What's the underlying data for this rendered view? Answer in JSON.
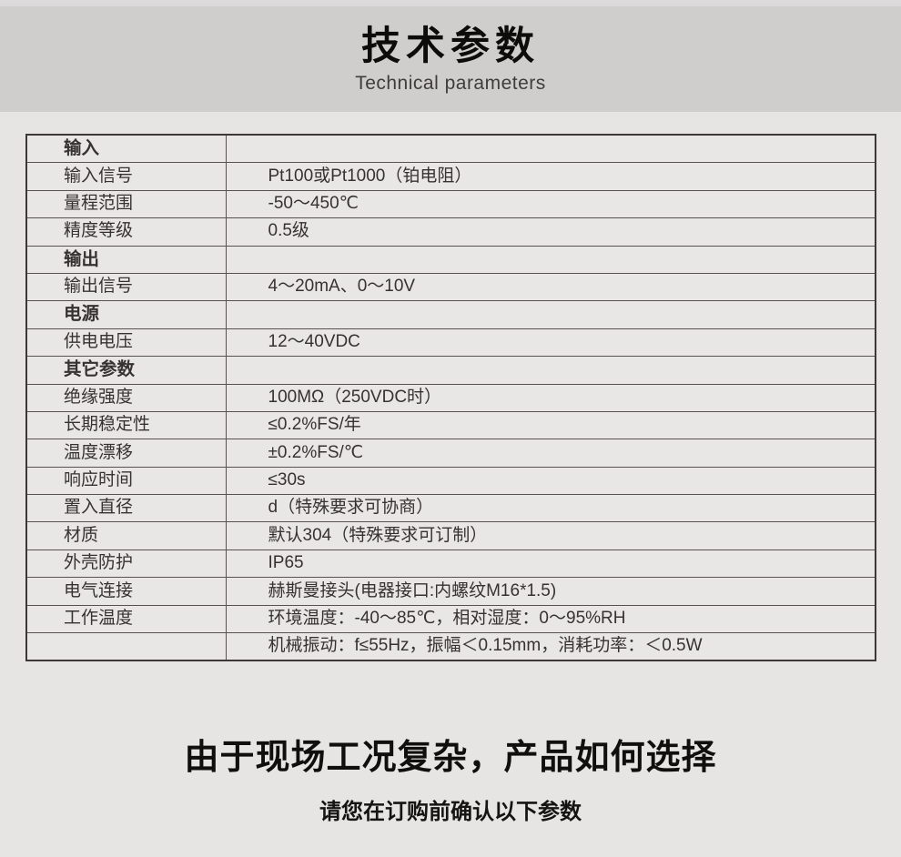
{
  "header": {
    "title": "技术参数",
    "subtitle": "Technical parameters"
  },
  "table": {
    "rows": [
      {
        "label": "输入",
        "value": ""
      },
      {
        "label": "输入信号",
        "value": "Pt100或Pt1000（铂电阻）"
      },
      {
        "label": "量程范围",
        "value": "-50～450℃"
      },
      {
        "label": "精度等级",
        "value": "0.5级"
      },
      {
        "label": "输出",
        "value": ""
      },
      {
        "label": "输出信号",
        "value": "4～20mA、0～10V"
      },
      {
        "label": "电源",
        "value": ""
      },
      {
        "label": "供电电压",
        "value": "12～40VDC"
      },
      {
        "label": "其它参数",
        "value": ""
      },
      {
        "label": "绝缘强度",
        "value": "100MΩ（250VDC时）"
      },
      {
        "label": "长期稳定性",
        "value": "≤0.2%FS/年"
      },
      {
        "label": "温度漂移",
        "value": "±0.2%FS/℃"
      },
      {
        "label": "响应时间",
        "value": "≤30s"
      },
      {
        "label": "置入直径",
        "value": "d（特殊要求可协商）"
      },
      {
        "label": "材质",
        "value": "默认304（特殊要求可订制）"
      },
      {
        "label": "外壳防护",
        "value": "IP65"
      },
      {
        "label": "电气连接",
        "value": "赫斯曼接头(电器接口:内螺纹M16*1.5)"
      },
      {
        "label": "工作温度",
        "value": "环境温度：-40～85℃，相对湿度：0～95%RH"
      },
      {
        "label": "",
        "value": "机械振动：f≤55Hz，振幅＜0.15mm，消耗功率：＜0.5W"
      }
    ]
  },
  "footer": {
    "heading": "由于现场工况复杂，产品如何选择",
    "subheading": "请您在订购前确认以下参数"
  },
  "colors": {
    "band_background": "#d0cecd",
    "page_background": "#e7e5e4",
    "table_background": "#e9e7e6",
    "border_dark": "#3b3836",
    "border_inner": "#56534f",
    "text": "#35322f"
  }
}
